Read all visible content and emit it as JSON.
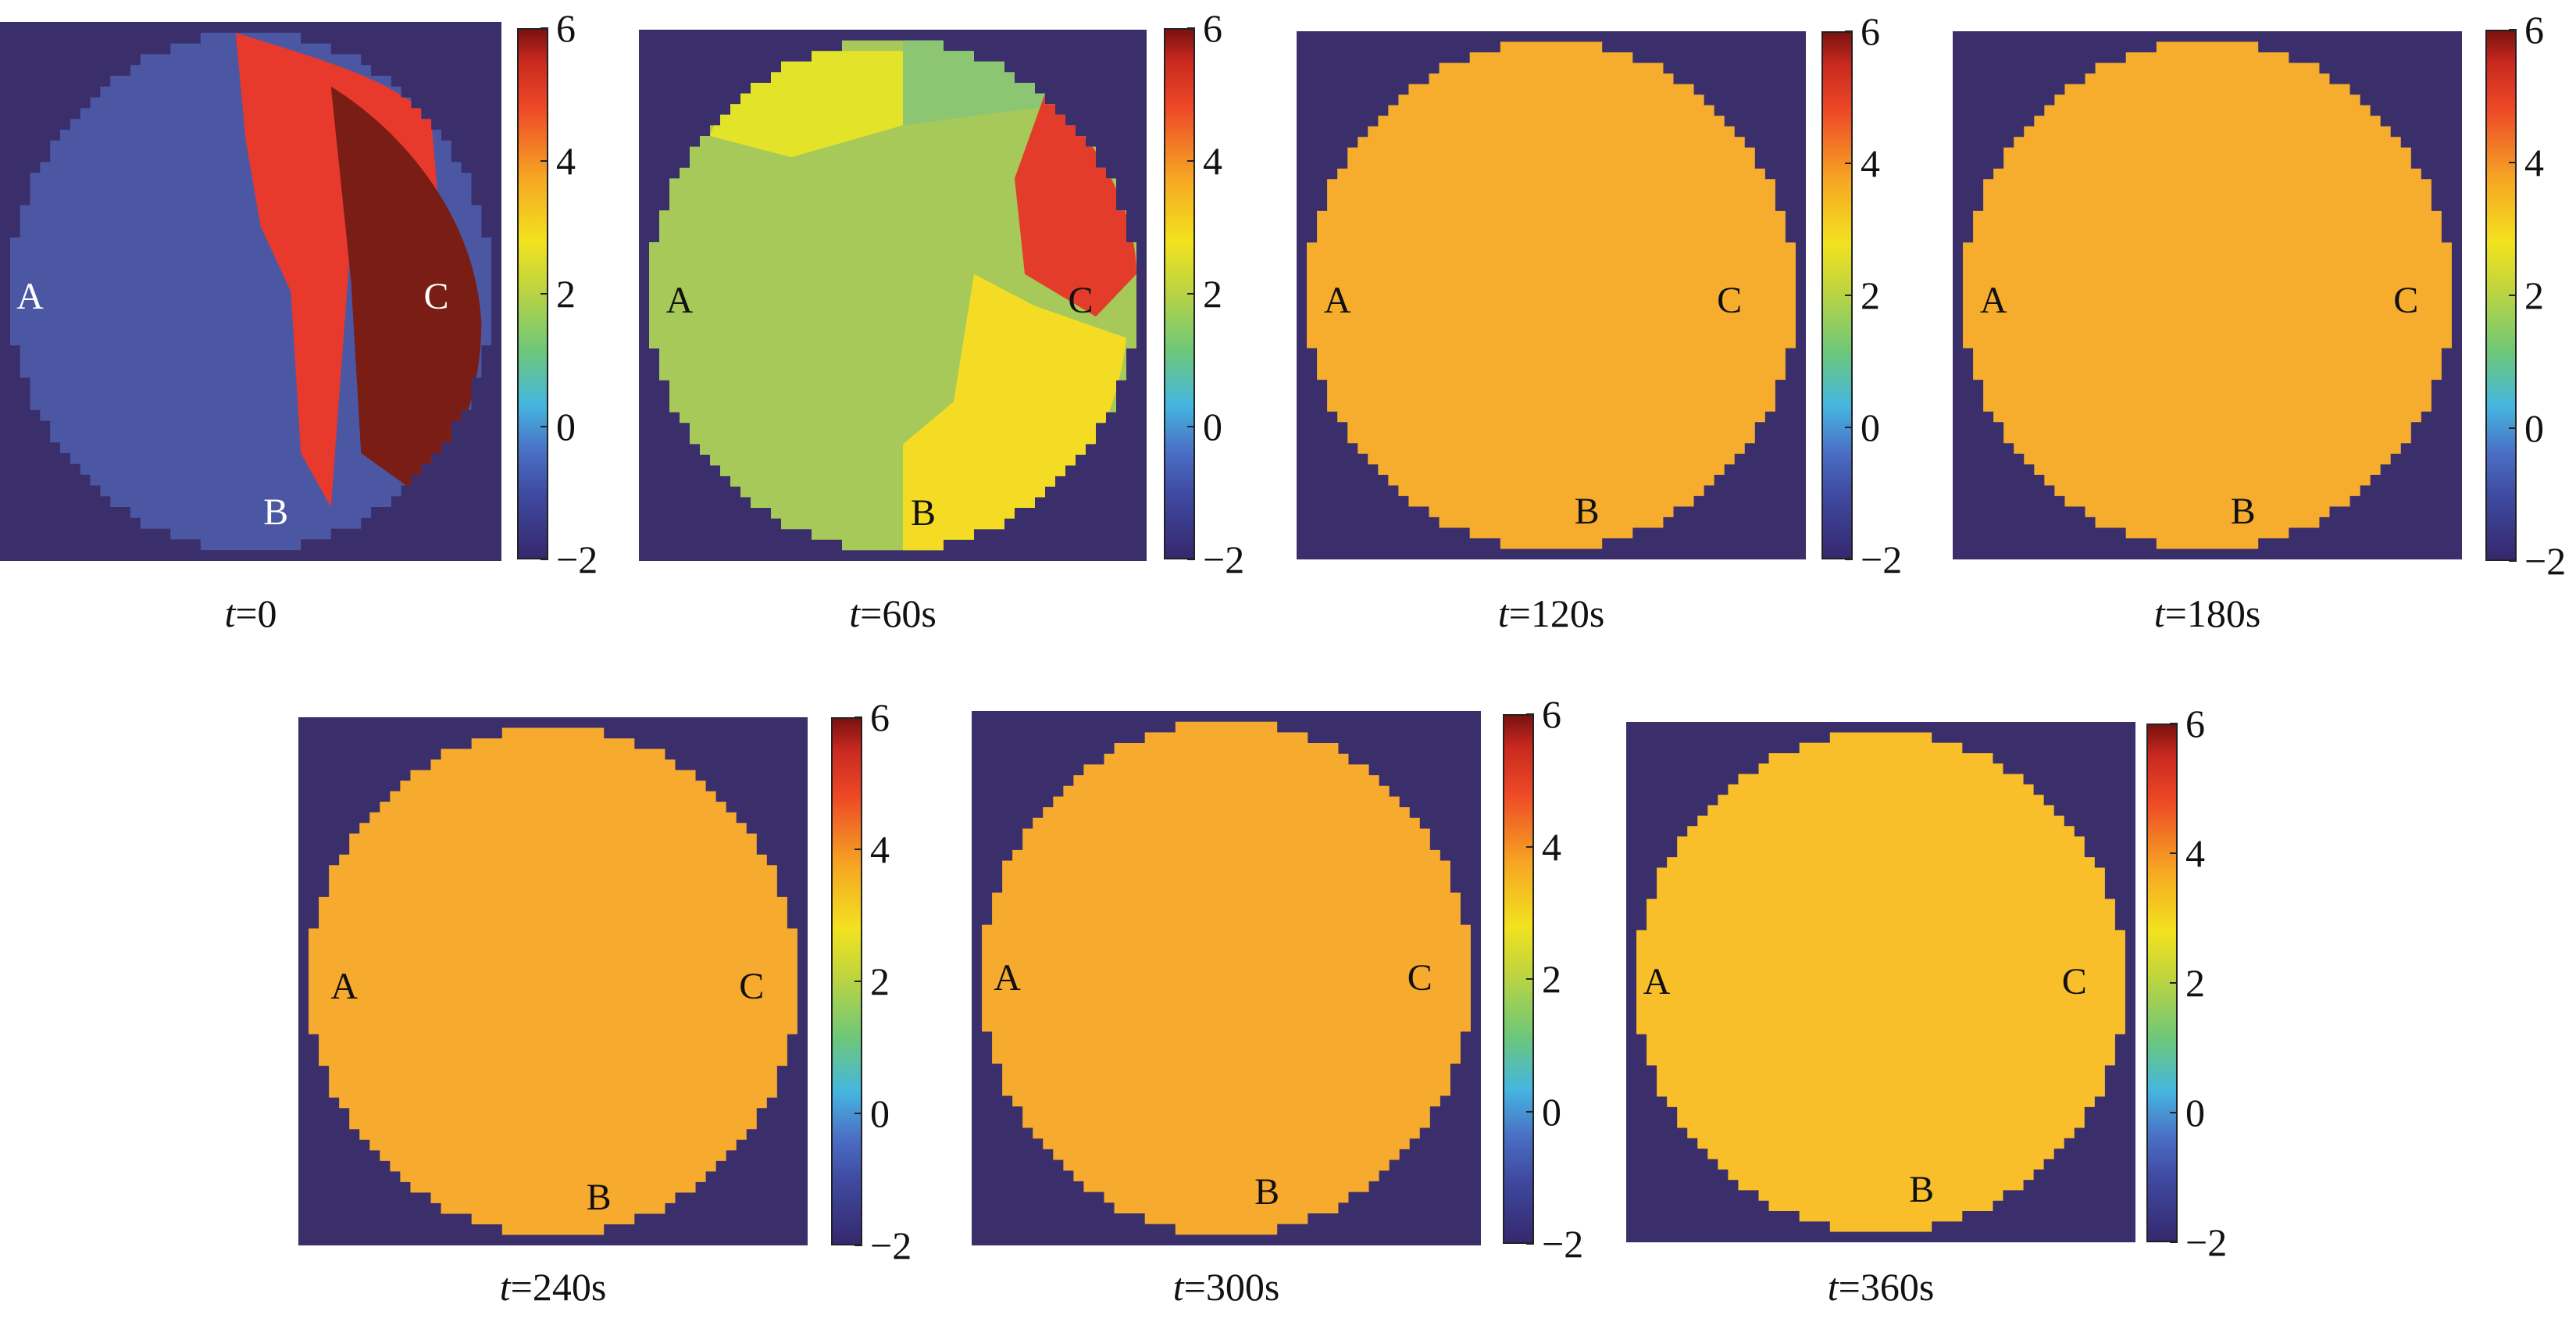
{
  "chart_data": [
    {
      "type": "heatmap",
      "time_label": "t",
      "time_value": "=0",
      "colorbar": {
        "min": -2,
        "max": 6,
        "ticks": [
          "6",
          "4",
          "2",
          "0",
          "−2"
        ]
      },
      "points": [
        {
          "label": "A",
          "color": "#ffffff"
        },
        {
          "label": "B",
          "color": "#ffffff"
        },
        {
          "label": "C",
          "color": "#ffffff"
        }
      ],
      "regions": [
        {
          "name": "left region",
          "value": -1.4,
          "color": "#4c57a3"
        },
        {
          "name": "upper-right region",
          "value": 5.2,
          "color": "#e8392d"
        },
        {
          "name": "right region near C",
          "value": 6.0,
          "color": "#7a1d14"
        }
      ]
    },
    {
      "type": "heatmap",
      "time_label": "t",
      "time_value": "=60s",
      "colorbar": {
        "min": -2,
        "max": 6,
        "ticks": [
          "6",
          "4",
          "2",
          "0",
          "−2"
        ]
      },
      "points": [
        {
          "label": "A",
          "color": "#111111"
        },
        {
          "label": "B",
          "color": "#111111"
        },
        {
          "label": "C",
          "color": "#111111"
        }
      ],
      "regions": [
        {
          "name": "main region",
          "value": 2.5,
          "color": "#a6c95a"
        },
        {
          "name": "top region",
          "value": 3.2,
          "color": "#e3e32a"
        },
        {
          "name": "top-right region",
          "value": 2.2,
          "color": "#8cc672"
        },
        {
          "name": "right region",
          "value": 5.2,
          "color": "#e33c2a"
        },
        {
          "name": "lower region near B",
          "value": 3.3,
          "color": "#f4dc24"
        }
      ]
    },
    {
      "type": "heatmap",
      "time_label": "t",
      "time_value": "=120s",
      "colorbar": {
        "min": -2,
        "max": 6,
        "ticks": [
          "6",
          "4",
          "2",
          "0",
          "−2"
        ]
      },
      "points": [
        {
          "label": "A",
          "color": "#111111"
        },
        {
          "label": "B",
          "color": "#111111"
        },
        {
          "label": "C",
          "color": "#111111"
        }
      ],
      "regions": [
        {
          "name": "whole region",
          "value": 3.9,
          "color": "#f6ad2e"
        }
      ]
    },
    {
      "type": "heatmap",
      "time_label": "t",
      "time_value": "=180s",
      "colorbar": {
        "min": -2,
        "max": 6,
        "ticks": [
          "6",
          "4",
          "2",
          "0",
          "−2"
        ]
      },
      "points": [
        {
          "label": "A",
          "color": "#111111"
        },
        {
          "label": "B",
          "color": "#111111"
        },
        {
          "label": "C",
          "color": "#111111"
        }
      ],
      "regions": [
        {
          "name": "whole region",
          "value": 3.9,
          "color": "#f6ad2e"
        }
      ]
    },
    {
      "type": "heatmap",
      "time_label": "t",
      "time_value": "=240s",
      "colorbar": {
        "min": -2,
        "max": 6,
        "ticks": [
          "6",
          "4",
          "2",
          "0",
          "−2"
        ]
      },
      "points": [
        {
          "label": "A",
          "color": "#111111"
        },
        {
          "label": "B",
          "color": "#111111"
        },
        {
          "label": "C",
          "color": "#111111"
        }
      ],
      "regions": [
        {
          "name": "whole region",
          "value": 3.9,
          "color": "#f6aa2e"
        }
      ]
    },
    {
      "type": "heatmap",
      "time_label": "t",
      "time_value": "=300s",
      "colorbar": {
        "min": -2,
        "max": 6,
        "ticks": [
          "6",
          "4",
          "2",
          "0",
          "−2"
        ]
      },
      "points": [
        {
          "label": "A",
          "color": "#111111"
        },
        {
          "label": "B",
          "color": "#111111"
        },
        {
          "label": "C",
          "color": "#111111"
        }
      ],
      "regions": [
        {
          "name": "whole region",
          "value": 3.9,
          "color": "#f6aa2e"
        }
      ]
    },
    {
      "type": "heatmap",
      "time_label": "t",
      "time_value": "=360s",
      "colorbar": {
        "min": -2,
        "max": 6,
        "ticks": [
          "6",
          "4",
          "2",
          "0",
          "−2"
        ]
      },
      "points": [
        {
          "label": "A",
          "color": "#111111"
        },
        {
          "label": "B",
          "color": "#111111"
        },
        {
          "label": "C",
          "color": "#111111"
        }
      ],
      "regions": [
        {
          "name": "whole region",
          "value": 3.6,
          "color": "#f8bf2a"
        }
      ]
    }
  ],
  "background_color": "#3b2f6b"
}
